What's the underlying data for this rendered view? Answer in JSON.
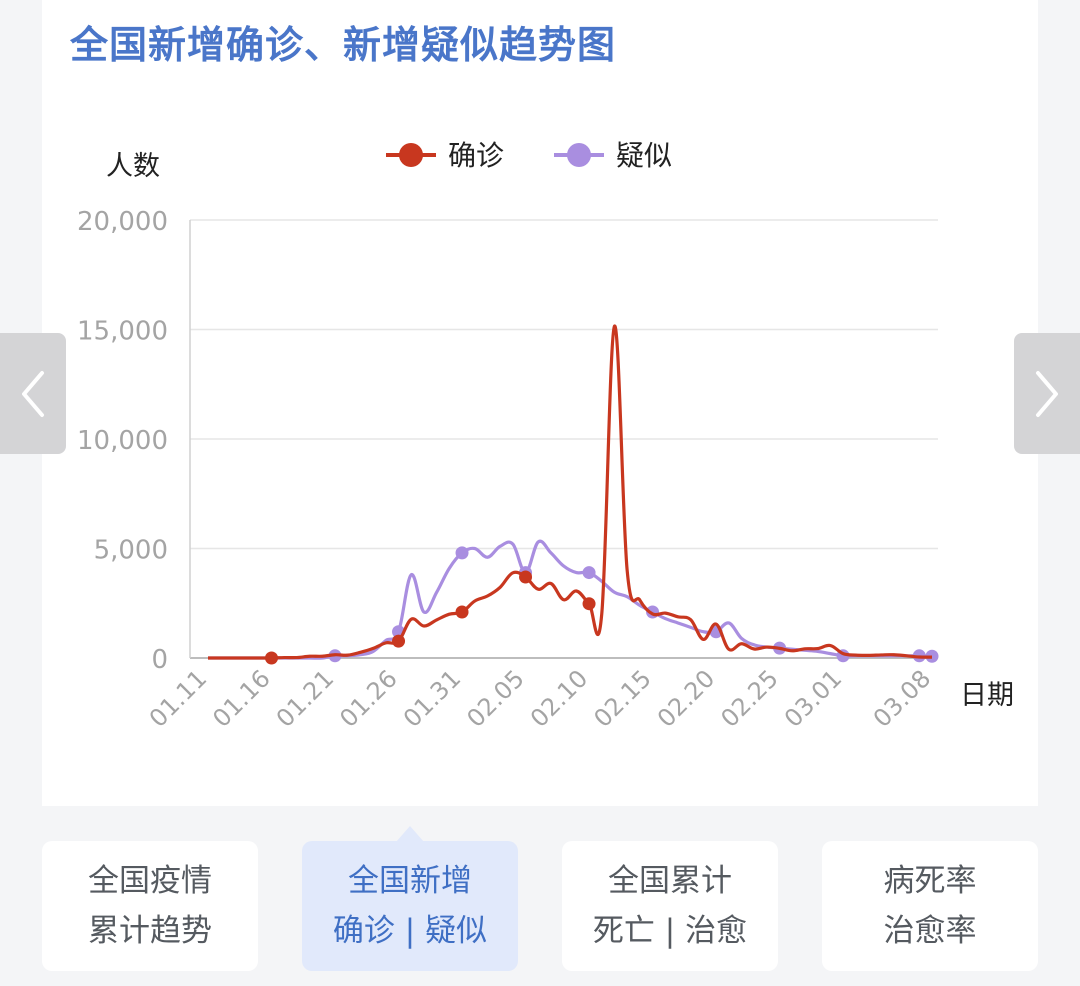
{
  "title": "全国新增确诊、新增疑似趋势图",
  "colors": {
    "title": "#4a76c9",
    "confirmed": "#c8371f",
    "suspected": "#a98ee0",
    "grid": "#e6e6e6",
    "axis_text": "#a4a4a4"
  },
  "chart_data": {
    "type": "line",
    "title": "全国新增确诊、新增疑似趋势图",
    "ylabel": "人数",
    "xlabel": "日期",
    "ylim": [
      0,
      20000
    ],
    "yticks": [
      0,
      5000,
      10000,
      15000,
      20000
    ],
    "ytick_labels": [
      "0",
      "5,000",
      "10,000",
      "15,000",
      "20,000"
    ],
    "xtick_labels": [
      "01.11",
      "01.16",
      "01.21",
      "01.26",
      "01.31",
      "02.05",
      "02.10",
      "02.15",
      "02.20",
      "02.25",
      "03.01",
      "03.08"
    ],
    "legend": {
      "position": "top-center"
    },
    "grid": true,
    "x": [
      "01.11",
      "01.12",
      "01.13",
      "01.14",
      "01.15",
      "01.16",
      "01.17",
      "01.18",
      "01.19",
      "01.20",
      "01.21",
      "01.22",
      "01.23",
      "01.24",
      "01.25",
      "01.26",
      "01.27",
      "01.28",
      "01.29",
      "01.30",
      "01.31",
      "02.01",
      "02.02",
      "02.03",
      "02.04",
      "02.05",
      "02.06",
      "02.07",
      "02.08",
      "02.09",
      "02.10",
      "02.11",
      "02.12",
      "02.13",
      "02.14",
      "02.15",
      "02.16",
      "02.17",
      "02.18",
      "02.19",
      "02.20",
      "02.21",
      "02.22",
      "02.23",
      "02.24",
      "02.25",
      "02.26",
      "02.27",
      "02.28",
      "02.29",
      "03.01",
      "03.02",
      "03.03",
      "03.04",
      "03.05",
      "03.06",
      "03.07",
      "03.08"
    ],
    "series": [
      {
        "name": "确诊",
        "color": "#c8371f",
        "values": [
          0,
          0,
          0,
          0,
          0,
          0,
          20,
          20,
          80,
          80,
          150,
          130,
          260,
          440,
          690,
          770,
          1770,
          1460,
          1740,
          2000,
          2100,
          2600,
          2830,
          3230,
          3890,
          3700,
          3140,
          3400,
          2660,
          3060,
          2480,
          2010,
          15150,
          4000,
          2640,
          2010,
          2050,
          1880,
          1750,
          850,
          1550,
          400,
          650,
          410,
          500,
          440,
          330,
          420,
          430,
          570,
          200,
          130,
          120,
          140,
          150,
          100,
          45,
          40
        ],
        "markers_at": [
          "01.16",
          "01.26",
          "01.31",
          "02.05",
          "02.10"
        ]
      },
      {
        "name": "疑似",
        "color": "#a98ee0",
        "values": [
          0,
          0,
          0,
          0,
          0,
          0,
          0,
          0,
          0,
          0,
          100,
          100,
          150,
          300,
          800,
          1200,
          3800,
          2100,
          3000,
          4100,
          4800,
          5000,
          4600,
          5100,
          5200,
          3900,
          5300,
          4800,
          4200,
          3900,
          3900,
          3500,
          3000,
          2800,
          2400,
          2100,
          1800,
          1600,
          1400,
          1200,
          1200,
          1600,
          900,
          600,
          500,
          450,
          400,
          350,
          300,
          200,
          100,
          100,
          100,
          100,
          100,
          100,
          100,
          80
        ],
        "markers_at": [
          "01.21",
          "01.26",
          "01.31",
          "02.05",
          "02.10",
          "02.15",
          "02.20",
          "02.25",
          "03.01",
          "03.07",
          "03.08"
        ]
      }
    ]
  },
  "tabs": [
    {
      "line1": "全国疫情",
      "line2": "累计趋势",
      "active": false
    },
    {
      "line1": "全国新增",
      "line2": "确诊 | 疑似",
      "active": true
    },
    {
      "line1": "全国累计",
      "line2": "死亡 | 治愈",
      "active": false
    },
    {
      "line1": "病死率",
      "line2": "治愈率",
      "active": false
    }
  ],
  "nav": {
    "prev_icon": "chevron-left-icon",
    "next_icon": "chevron-right-icon"
  }
}
